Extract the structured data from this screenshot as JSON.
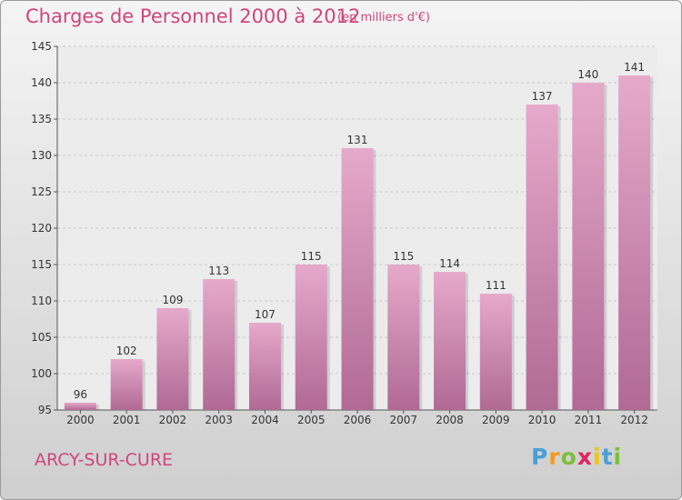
{
  "title": "Charges de Personnel 2000 à 2012",
  "subtitle": "(en milliers d'€)",
  "city": "ARCY-SUR-CURE",
  "logo": {
    "letters": [
      "P",
      "r",
      "o",
      "x",
      "i",
      "t",
      "i"
    ],
    "colors": [
      "#4aa0d8",
      "#f29a1f",
      "#7bbf3a",
      "#e0245e",
      "#f2c500",
      "#4aa0d8",
      "#7bbf3a"
    ]
  },
  "colors": {
    "bar_light": "#e6a9cb",
    "bar_dark": "#b06a94",
    "grid": "#c8c8c8",
    "axis": "#555555",
    "text": "#333333",
    "accent": "#d0457a"
  },
  "chart_data": {
    "type": "bar",
    "categories": [
      "2000",
      "2001",
      "2002",
      "2003",
      "2004",
      "2005",
      "2006",
      "2007",
      "2008",
      "2009",
      "2010",
      "2011",
      "2012"
    ],
    "values": [
      96,
      102,
      109,
      113,
      107,
      115,
      131,
      115,
      114,
      111,
      137,
      140,
      141
    ],
    "title": "Charges de Personnel 2000 à 2012",
    "subtitle": "(en milliers d'€)",
    "xlabel": "",
    "ylabel": "",
    "ylim": [
      95,
      145
    ],
    "yticks": [
      95,
      100,
      105,
      110,
      115,
      120,
      125,
      130,
      135,
      140,
      145
    ],
    "grid": true,
    "data_labels": true
  }
}
